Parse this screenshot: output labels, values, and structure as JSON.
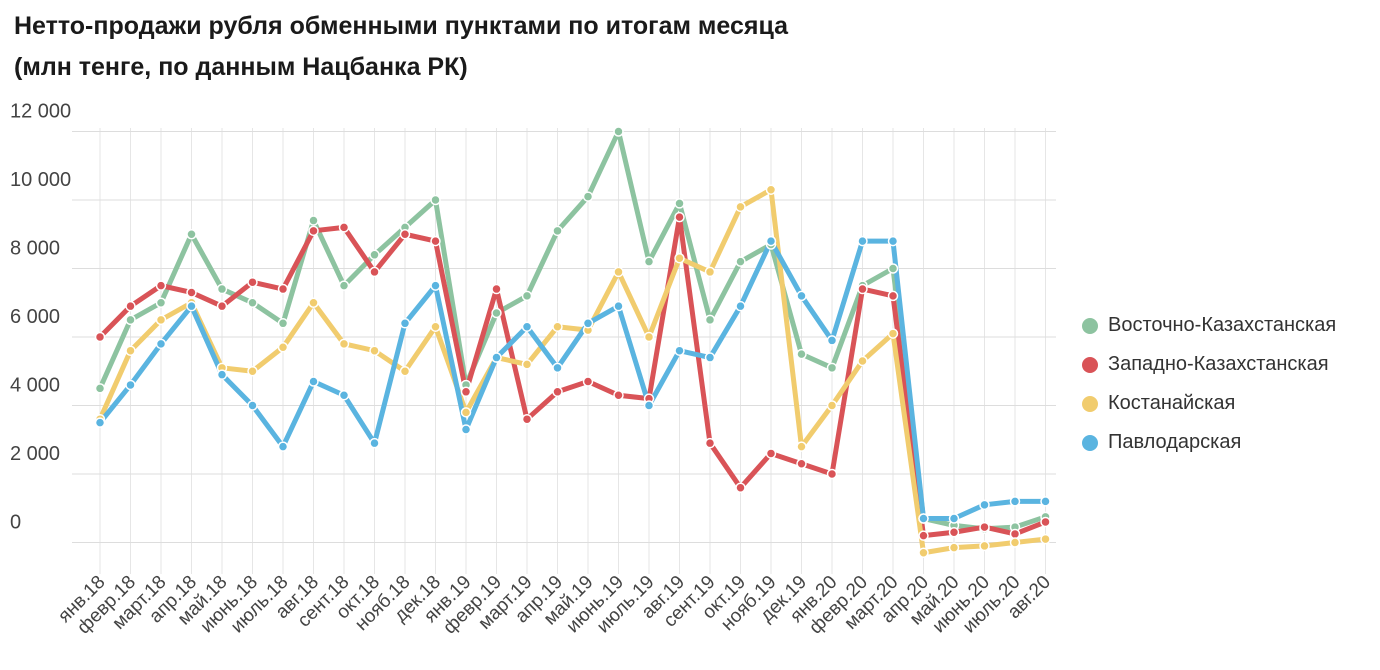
{
  "title_line1": "Нетто-продажи рубля обменными пунктами по итогам месяца",
  "title_line2": "(млн тенге, по данным Нацбанка РК)",
  "chart_data": {
    "type": "line",
    "title": "Нетто-продажи рубля обменными пунктами по итогам месяца (млн тенге, по данным Нацбанка РК)",
    "xlabel": "",
    "ylabel": "",
    "ylim": [
      -500,
      12000
    ],
    "yticks": [
      0,
      2000,
      4000,
      6000,
      8000,
      10000,
      12000
    ],
    "ytick_labels": [
      "0",
      "2 000",
      "4 000",
      "6 000",
      "8 000",
      "10 000",
      "12 000"
    ],
    "grid": true,
    "legend_position": "right",
    "categories": [
      "янв.18",
      "февр.18",
      "март.18",
      "апр.18",
      "май.18",
      "июнь.18",
      "июль.18",
      "авг.18",
      "сент.18",
      "окт.18",
      "нояб.18",
      "дек.18",
      "янв.19",
      "февр.19",
      "март.19",
      "апр.19",
      "май.19",
      "июнь.19",
      "июль.19",
      "авг.19",
      "сент.19",
      "окт.19",
      "нояб.19",
      "дек.19",
      "янв.20",
      "февр.20",
      "март.20",
      "апр.20",
      "май.20",
      "июнь.20",
      "июль.20",
      "авг.20"
    ],
    "series": [
      {
        "name": "Восточно-Казахстанская",
        "color": "#8dc3a0",
        "values": [
          4500,
          6500,
          7000,
          9000,
          7400,
          7000,
          6400,
          9400,
          7500,
          8400,
          9200,
          10000,
          4600,
          6700,
          7200,
          9100,
          10100,
          12000,
          8200,
          9900,
          6500,
          8200,
          8700,
          5500,
          5100,
          7500,
          8000,
          700,
          500,
          400,
          450,
          750
        ]
      },
      {
        "name": "Западно-Казахстанская",
        "color": "#d95357",
        "values": [
          6000,
          6900,
          7500,
          7300,
          6900,
          7600,
          7400,
          9100,
          9200,
          7900,
          9000,
          8800,
          4400,
          7400,
          3600,
          4400,
          4700,
          4300,
          4200,
          9500,
          2900,
          1600,
          2600,
          2300,
          2000,
          7400,
          7200,
          200,
          300,
          450,
          250,
          600
        ]
      },
      {
        "name": "Костанайская",
        "color": "#f1cc6e",
        "values": [
          3600,
          5600,
          6500,
          7000,
          5100,
          5000,
          5700,
          7000,
          5800,
          5600,
          5000,
          6300,
          3800,
          5400,
          5200,
          6300,
          6200,
          7900,
          6000,
          8300,
          7900,
          9800,
          10300,
          2800,
          4000,
          5300,
          6100,
          -300,
          -150,
          -100,
          0,
          100
        ]
      },
      {
        "name": "Павлодарская",
        "color": "#5ab4e0",
        "values": [
          3500,
          4600,
          5800,
          6900,
          4900,
          4000,
          2800,
          4700,
          4300,
          2900,
          6400,
          7500,
          3300,
          5400,
          6300,
          5100,
          6400,
          6900,
          4000,
          5600,
          5400,
          6900,
          8800,
          7200,
          5900,
          8800,
          8800,
          700,
          700,
          1100,
          1200,
          1200
        ]
      }
    ]
  }
}
